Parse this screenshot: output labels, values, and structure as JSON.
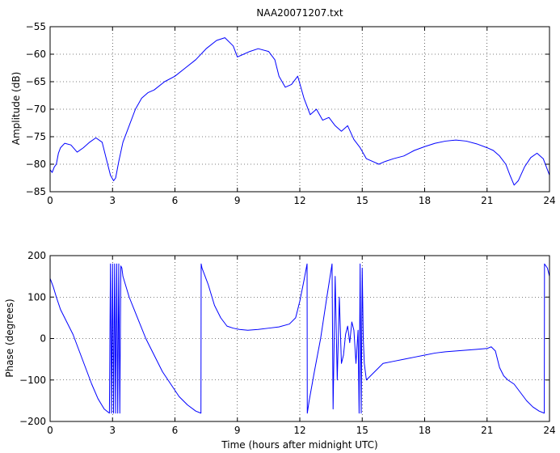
{
  "chart_data": [
    {
      "type": "line",
      "title": "NAA20071207.txt",
      "xlabel": "",
      "ylabel": "Amplitude (dB)",
      "xlim": [
        0,
        24
      ],
      "ylim": [
        -85,
        -55
      ],
      "x_ticks": [
        "0",
        "3",
        "6",
        "9",
        "12",
        "15",
        "18",
        "21",
        "24"
      ],
      "y_ticks": [
        "-55",
        "-60",
        "-65",
        "-70",
        "-75",
        "-80",
        "-85"
      ],
      "grid": true,
      "color": "#0000ff",
      "series": [
        {
          "x": [
            0,
            0.1,
            0.2,
            0.3,
            0.4,
            0.5,
            0.7,
            1.0,
            1.3,
            1.6,
            1.9,
            2.2,
            2.5,
            2.7,
            2.9,
            3.05,
            3.15,
            3.3,
            3.5,
            3.8,
            4.1,
            4.4,
            4.7,
            5.0,
            5.5,
            6.0,
            6.5,
            7.0,
            7.5,
            8.0,
            8.4,
            8.8,
            9.0,
            9.3,
            9.6,
            10.0,
            10.5,
            10.8,
            11.0,
            11.3,
            11.6,
            11.9,
            12.2,
            12.5,
            12.8,
            13.1,
            13.4,
            13.7,
            14.0,
            14.3,
            14.6,
            14.9,
            15.2,
            15.5,
            15.8,
            16.1,
            16.5,
            17.0,
            17.5,
            18.0,
            18.5,
            19.0,
            19.5,
            20.0,
            20.5,
            21.0,
            21.3,
            21.6,
            21.9,
            22.1,
            22.3,
            22.5,
            22.8,
            23.1,
            23.4,
            23.7,
            24.0
          ],
          "y": [
            -81,
            -81.5,
            -80.5,
            -80,
            -78,
            -77,
            -76.2,
            -76.5,
            -77.8,
            -77,
            -76,
            -75.2,
            -76,
            -79,
            -82,
            -83,
            -82.5,
            -79.5,
            -76,
            -73,
            -70,
            -68,
            -67,
            -66.5,
            -65,
            -64,
            -62.5,
            -61,
            -59,
            -57.5,
            -57,
            -58.5,
            -60.5,
            -60,
            -59.5,
            -59,
            -59.5,
            -61,
            -64,
            -66,
            -65.5,
            -64,
            -68,
            -71,
            -70,
            -72,
            -71.5,
            -73,
            -74,
            -73,
            -75.5,
            -77,
            -79,
            -79.5,
            -80,
            -79.5,
            -79,
            -78.5,
            -77.5,
            -76.8,
            -76.2,
            -75.8,
            -75.6,
            -75.8,
            -76.3,
            -77,
            -77.5,
            -78.5,
            -80,
            -82,
            -83.8,
            -83,
            -80.5,
            -78.8,
            -78,
            -79,
            -82
          ]
        }
      ]
    },
    {
      "type": "line",
      "title": "",
      "xlabel": "Time (hours after midnight UTC)",
      "ylabel": "Phase (degrees)",
      "xlim": [
        0,
        24
      ],
      "ylim": [
        -200,
        200
      ],
      "x_ticks": [
        "0",
        "3",
        "6",
        "9",
        "12",
        "15",
        "18",
        "21",
        "24"
      ],
      "y_ticks": [
        "200",
        "100",
        "0",
        "-100",
        "-200"
      ],
      "grid": true,
      "color": "#0000ff",
      "series": [
        {
          "x": [
            0,
            0.15,
            0.3,
            0.5,
            0.8,
            1.1,
            1.4,
            1.7,
            2.0,
            2.3,
            2.6,
            2.85,
            2.9,
            2.95,
            3.0,
            3.05,
            3.1,
            3.15,
            3.2,
            3.25,
            3.3,
            3.35,
            3.4,
            3.45,
            3.5,
            3.8,
            4.2,
            4.6,
            5.0,
            5.4,
            5.8,
            6.2,
            6.6,
            7.0,
            7.25,
            7.26,
            7.3,
            7.6,
            7.9,
            8.2,
            8.5,
            8.8,
            9.1,
            9.5,
            10.0,
            10.5,
            11.0,
            11.5,
            11.8,
            12.0,
            12.2,
            12.35,
            12.36,
            12.45,
            12.7,
            13.0,
            13.3,
            13.55,
            13.6,
            13.7,
            13.8,
            13.9,
            14.0,
            14.1,
            14.2,
            14.3,
            14.4,
            14.5,
            14.6,
            14.7,
            14.8,
            14.85,
            14.9,
            14.95,
            15.0,
            15.05,
            15.1,
            15.2,
            15.4,
            15.6,
            15.8,
            16.0,
            16.5,
            17.0,
            17.5,
            18.0,
            18.5,
            19.0,
            19.5,
            20.0,
            20.5,
            21.0,
            21.2,
            21.4,
            21.6,
            21.8,
            22.0,
            22.3,
            22.6,
            22.9,
            23.2,
            23.5,
            23.75,
            23.76,
            23.9,
            24.0
          ],
          "y": [
            145,
            125,
            100,
            70,
            40,
            10,
            -30,
            -70,
            -110,
            -145,
            -170,
            -180,
            180,
            -180,
            180,
            -180,
            180,
            -180,
            180,
            -180,
            180,
            -180,
            175,
            170,
            150,
            100,
            50,
            0,
            -40,
            -80,
            -110,
            -140,
            -160,
            -175,
            -180,
            180,
            170,
            130,
            80,
            50,
            30,
            25,
            22,
            20,
            22,
            25,
            28,
            35,
            50,
            90,
            140,
            180,
            -180,
            -150,
            -80,
            0,
            100,
            180,
            -170,
            150,
            -100,
            100,
            -60,
            -40,
            10,
            30,
            -10,
            40,
            20,
            -60,
            20,
            -180,
            180,
            -180,
            170,
            0,
            -60,
            -100,
            -90,
            -80,
            -70,
            -60,
            -55,
            -50,
            -45,
            -40,
            -35,
            -32,
            -30,
            -28,
            -26,
            -24,
            -20,
            -30,
            -70,
            -90,
            -100,
            -110,
            -130,
            -150,
            -165,
            -175,
            -180,
            180,
            170,
            150
          ]
        }
      ]
    }
  ]
}
